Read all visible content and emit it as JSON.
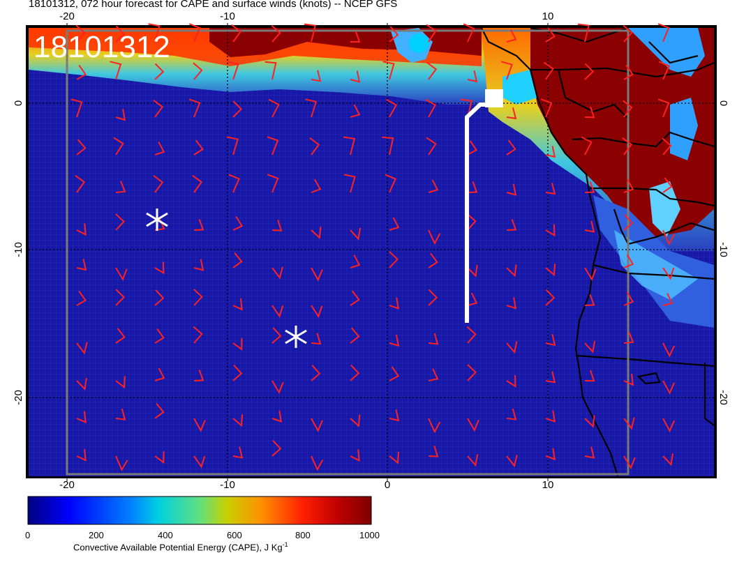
{
  "title": "18101312, 072 hour forecast for CAPE and surface winds (knots) -- NCEP GFS",
  "map_stamp": "18101312",
  "axes": {
    "lon_ticks": [
      "-20",
      "-10",
      "0",
      "10"
    ],
    "lat_ticks": [
      "0",
      "-10",
      "-20"
    ]
  },
  "colorbar": {
    "labels": [
      "0",
      "200",
      "400",
      "600",
      "800",
      "1000"
    ],
    "title": "Convective Available Potential Energy (CAPE), J Kg",
    "title_superscript": "-1"
  },
  "markers": {
    "star_icons": [
      "asterisk-icon",
      "asterisk-icon"
    ],
    "track_color": "#ffffff"
  },
  "colors": {
    "ocean": "#14149c",
    "land_high": "#8b0000",
    "wind_barb": "#ff0000"
  }
}
